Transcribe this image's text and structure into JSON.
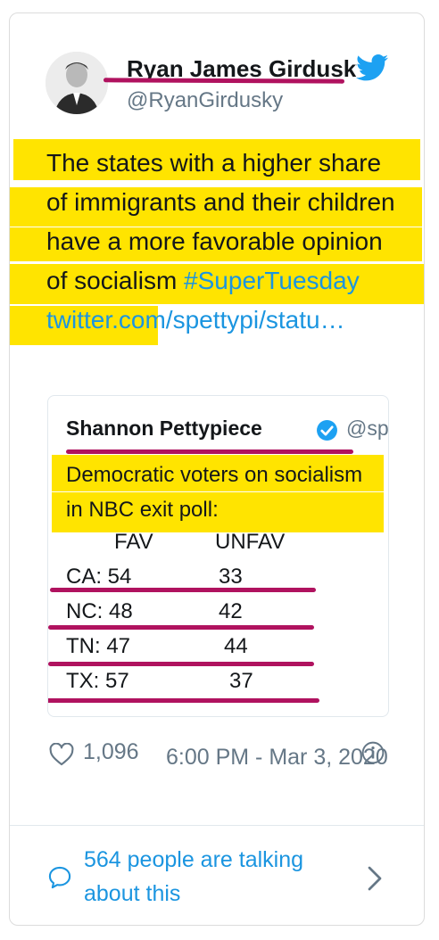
{
  "tweet": {
    "author_name": "Ryan James Girdusky",
    "author_handle": "@RyanGirdusky",
    "text": "The states with a higher share of immigrants and their children have a more favorable opinion of socialism",
    "hashtag": "#SuperTuesday",
    "link": "twitter.com/spettypi/statu…",
    "likes": "1,096",
    "timestamp": "6:00 PM - Mar 3, 2020",
    "talking": "564 people are talking about this"
  },
  "quote": {
    "author_name": "Shannon Pettypiece",
    "author_handle": "@spettypi",
    "text": "Democratic voters on socialism in NBC exit poll:",
    "header_fav": "FAV",
    "header_unfav": "UNFAV",
    "rows": [
      {
        "state": "CA: 54",
        "unfav": "33"
      },
      {
        "state": "NC: 48",
        "unfav": "42"
      },
      {
        "state": "TN: 47",
        "unfav": "44"
      },
      {
        "state": "TX: 57",
        "unfav": "37"
      }
    ]
  },
  "colors": {
    "highlight_yellow": "#ffe400",
    "underline_magenta": "#b0125f",
    "link_blue": "#1b95e0",
    "muted": "#657786"
  },
  "icons": [
    "twitter-bird-icon",
    "verified-badge-icon",
    "heart-icon",
    "info-icon",
    "chat-bubble-icon",
    "chevron-right-icon"
  ]
}
